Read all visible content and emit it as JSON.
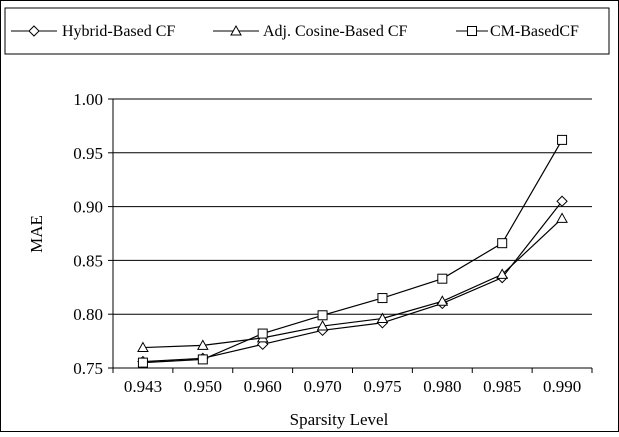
{
  "chart_data": {
    "type": "line",
    "title": "",
    "xlabel": "Sparsity Level",
    "ylabel": "MAE",
    "categories": [
      "0.943",
      "0.950",
      "0.960",
      "0.970",
      "0.975",
      "0.980",
      "0.985",
      "0.990"
    ],
    "y_ticks": [
      "0.75",
      "0.80",
      "0.85",
      "0.90",
      "0.95",
      "1.00"
    ],
    "ylim": [
      0.75,
      1.0
    ],
    "grid": "horizontal",
    "legend_position": "top",
    "series": [
      {
        "name": "Hybrid-Based CF",
        "marker": "diamond",
        "values": [
          0.756,
          0.759,
          0.772,
          0.785,
          0.792,
          0.81,
          0.834,
          0.905
        ]
      },
      {
        "name": "Adj. Cosine-Based CF",
        "marker": "triangle",
        "values": [
          0.769,
          0.771,
          0.778,
          0.789,
          0.796,
          0.812,
          0.837,
          0.889
        ]
      },
      {
        "name": "CM-BasedCF",
        "marker": "square",
        "values": [
          0.755,
          0.758,
          0.782,
          0.799,
          0.815,
          0.833,
          0.866,
          0.962
        ]
      }
    ]
  }
}
